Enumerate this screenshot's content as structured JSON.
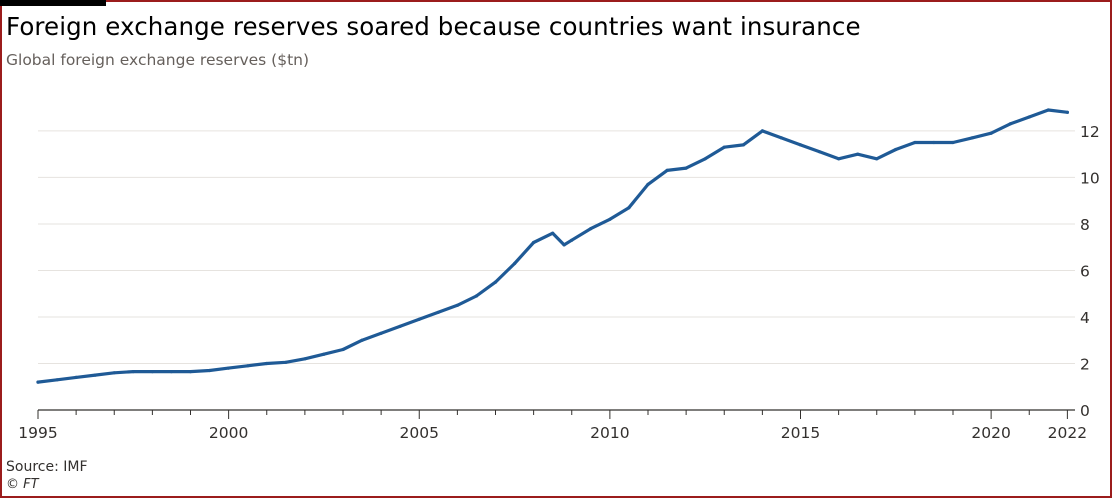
{
  "header": {
    "title": "Foreign exchange reserves soared because countries want insurance",
    "subtitle": "Global foreign exchange reserves ($tn)"
  },
  "footer": {
    "source": "Source: IMF",
    "credit": "© FT"
  },
  "colors": {
    "line": "#1f5a96",
    "grid": "#e6e3df",
    "axis": "#33302e",
    "frame": "#9b1c1c"
  },
  "chart_data": {
    "type": "line",
    "title": "Foreign exchange reserves soared because countries want insurance",
    "subtitle": "Global foreign exchange reserves ($tn)",
    "xlabel": "",
    "ylabel": "",
    "xlim": [
      1995,
      2022.2
    ],
    "ylim": [
      0,
      13.2
    ],
    "grid": true,
    "y_axis_side": "right",
    "x_tick_labels": [
      "1995",
      "2000",
      "2005",
      "2010",
      "2015",
      "2020",
      "2022"
    ],
    "x_tick_values": [
      1995,
      2000,
      2005,
      2010,
      2015,
      2020,
      2022
    ],
    "y_tick_labels": [
      "0",
      "2",
      "4",
      "6",
      "8",
      "10",
      "12"
    ],
    "y_tick_values": [
      0,
      2,
      4,
      6,
      8,
      10,
      12
    ],
    "series": [
      {
        "name": "",
        "x": [
          1995.0,
          1995.5,
          1996.0,
          1996.5,
          1997.0,
          1997.5,
          1998.0,
          1998.5,
          1999.0,
          1999.5,
          2000.0,
          2000.5,
          2001.0,
          2001.5,
          2002.0,
          2002.5,
          2003.0,
          2003.5,
          2004.0,
          2004.5,
          2005.0,
          2005.5,
          2006.0,
          2006.5,
          2007.0,
          2007.5,
          2008.0,
          2008.5,
          2008.8,
          2009.0,
          2009.5,
          2010.0,
          2010.5,
          2011.0,
          2011.5,
          2012.0,
          2012.5,
          2013.0,
          2013.5,
          2014.0,
          2014.5,
          2015.0,
          2015.5,
          2016.0,
          2016.5,
          2017.0,
          2017.5,
          2018.0,
          2018.5,
          2019.0,
          2019.5,
          2020.0,
          2020.5,
          2021.0,
          2021.5,
          2022.0
        ],
        "y": [
          1.2,
          1.3,
          1.4,
          1.5,
          1.6,
          1.65,
          1.65,
          1.65,
          1.65,
          1.7,
          1.8,
          1.9,
          2.0,
          2.05,
          2.2,
          2.4,
          2.6,
          3.0,
          3.3,
          3.6,
          3.9,
          4.2,
          4.5,
          4.9,
          5.5,
          6.3,
          7.2,
          7.6,
          7.1,
          7.3,
          7.8,
          8.2,
          8.7,
          9.7,
          10.3,
          10.4,
          10.8,
          11.3,
          11.4,
          12.0,
          11.7,
          11.4,
          11.1,
          10.8,
          11.0,
          10.8,
          11.2,
          11.5,
          11.5,
          11.5,
          11.7,
          11.9,
          12.3,
          12.6,
          12.9,
          12.8
        ]
      }
    ]
  }
}
